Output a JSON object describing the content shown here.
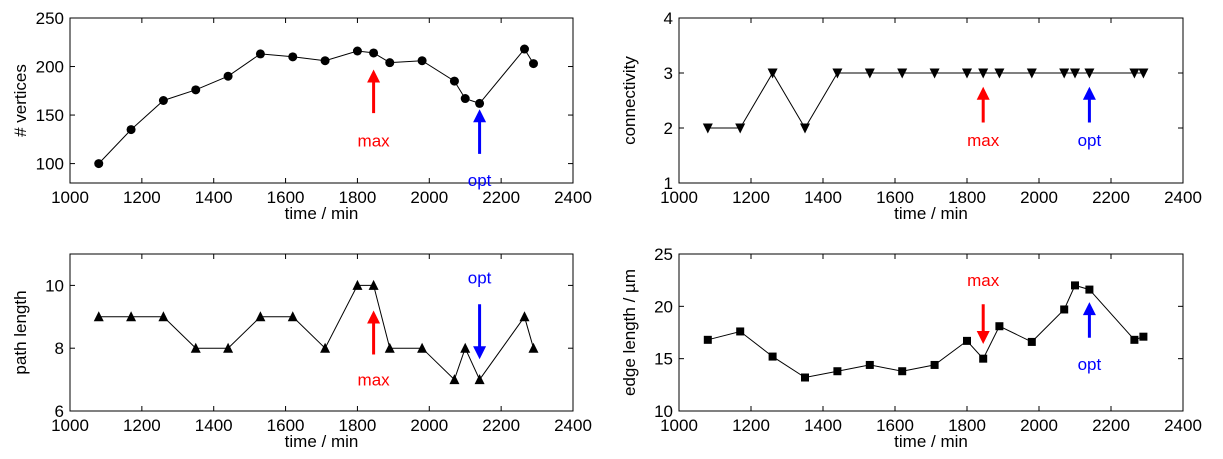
{
  "chart_data": [
    {
      "type": "line",
      "marker": "circle",
      "xlabel": "time / min",
      "ylabel": "# vertices",
      "xlim": [
        1000,
        2400
      ],
      "ylim": [
        80,
        250
      ],
      "xticks": [
        1000,
        1200,
        1400,
        1600,
        1800,
        2000,
        2200,
        2400
      ],
      "yticks": [
        100,
        150,
        200,
        250
      ],
      "x": [
        1080,
        1170,
        1260,
        1350,
        1440,
        1530,
        1620,
        1710,
        1800,
        1845,
        1890,
        1980,
        2070,
        2100,
        2140,
        2265,
        2290
      ],
      "y": [
        100,
        135,
        165,
        176,
        190,
        213,
        210,
        206,
        216,
        214,
        204,
        206,
        185,
        167,
        162,
        218,
        203
      ],
      "annotations": [
        {
          "text": "max",
          "x": 1845,
          "color": "#ff0000",
          "direction": "up",
          "arrow_from": 152,
          "arrow_to": 197,
          "label_y": 124
        },
        {
          "text": "opt",
          "x": 2140,
          "color": "#0000ff",
          "direction": "up",
          "arrow_from": 110,
          "arrow_to": 156,
          "label_y": 83
        }
      ]
    },
    {
      "type": "line",
      "marker": "triangle-down",
      "xlabel": "time / min",
      "ylabel": "connectivity",
      "xlim": [
        1000,
        2400
      ],
      "ylim": [
        1,
        4
      ],
      "xticks": [
        1000,
        1200,
        1400,
        1600,
        1800,
        2000,
        2200,
        2400
      ],
      "yticks": [
        1,
        2,
        3,
        4
      ],
      "x": [
        1080,
        1170,
        1260,
        1350,
        1440,
        1530,
        1620,
        1710,
        1800,
        1845,
        1890,
        1980,
        2070,
        2100,
        2140,
        2265,
        2290
      ],
      "y": [
        2,
        2,
        3,
        2,
        3,
        3,
        3,
        3,
        3,
        3,
        3,
        3,
        3,
        3,
        3,
        3,
        3
      ],
      "annotations": [
        {
          "text": "max",
          "x": 1845,
          "color": "#ff0000",
          "direction": "up",
          "arrow_from": 2.1,
          "arrow_to": 2.75,
          "label_y": 1.78
        },
        {
          "text": "opt",
          "x": 2140,
          "color": "#0000ff",
          "direction": "up",
          "arrow_from": 2.1,
          "arrow_to": 2.75,
          "label_y": 1.78
        }
      ]
    },
    {
      "type": "line",
      "marker": "triangle-up",
      "xlabel": "time / min",
      "ylabel": "path length",
      "xlim": [
        1000,
        2400
      ],
      "ylim": [
        6,
        11
      ],
      "xticks": [
        1000,
        1200,
        1400,
        1600,
        1800,
        2000,
        2200,
        2400
      ],
      "yticks": [
        6,
        8,
        10
      ],
      "x": [
        1080,
        1170,
        1260,
        1350,
        1440,
        1530,
        1620,
        1710,
        1800,
        1845,
        1890,
        1980,
        2070,
        2100,
        2140,
        2265,
        2290
      ],
      "y": [
        9,
        9,
        9,
        8,
        8,
        9,
        9,
        8,
        10,
        10,
        8,
        8,
        7,
        8,
        7,
        9,
        8
      ],
      "annotations": [
        {
          "text": "max",
          "x": 1845,
          "color": "#ff0000",
          "direction": "up",
          "arrow_from": 7.8,
          "arrow_to": 9.2,
          "label_y": 7.0
        },
        {
          "text": "opt",
          "x": 2140,
          "color": "#0000ff",
          "direction": "down",
          "arrow_from": 9.4,
          "arrow_to": 7.65,
          "label_y": 10.25
        }
      ]
    },
    {
      "type": "line",
      "marker": "square",
      "xlabel": "time / min",
      "ylabel": "edge length / µm",
      "xlim": [
        1000,
        2400
      ],
      "ylim": [
        10,
        25
      ],
      "xticks": [
        1000,
        1200,
        1400,
        1600,
        1800,
        2000,
        2200,
        2400
      ],
      "yticks": [
        10,
        15,
        20,
        25
      ],
      "x": [
        1080,
        1170,
        1260,
        1350,
        1440,
        1530,
        1620,
        1710,
        1800,
        1845,
        1890,
        1980,
        2070,
        2100,
        2140,
        2265,
        2290
      ],
      "y": [
        16.8,
        17.6,
        15.2,
        13.2,
        13.8,
        14.4,
        13.8,
        14.4,
        16.7,
        15.0,
        18.1,
        16.6,
        19.7,
        22.0,
        21.6,
        16.8,
        17.1
      ],
      "annotations": [
        {
          "text": "max",
          "x": 1845,
          "color": "#ff0000",
          "direction": "down",
          "arrow_from": 20.2,
          "arrow_to": 16.4,
          "label_y": 22.5
        },
        {
          "text": "opt",
          "x": 2140,
          "color": "#0000ff",
          "direction": "up",
          "arrow_from": 17.0,
          "arrow_to": 20.4,
          "label_y": 14.5
        }
      ]
    }
  ]
}
